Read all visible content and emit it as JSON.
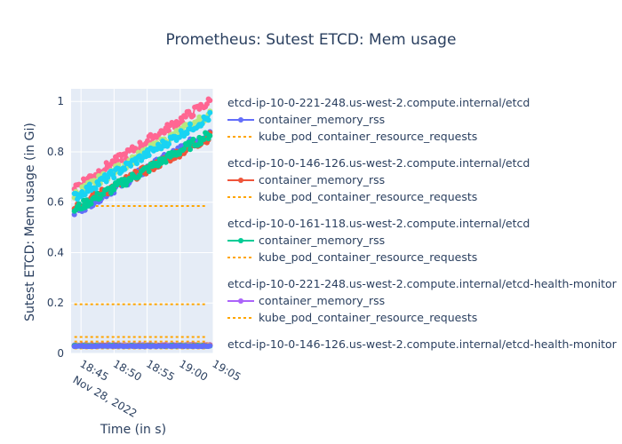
{
  "chart_data": {
    "type": "line",
    "title": "Prometheus: Sutest ETCD: Mem usage",
    "xlabel": "Time (in s)",
    "ylabel": "Sutest ETCD: Mem usage (in Gi)",
    "x_ticks": [
      "18:45",
      "18:50",
      "18:55",
      "19:00",
      "19:05"
    ],
    "x_tick_sublabel": "Nov 28, 2022",
    "x_range": [
      "18:43:30",
      "19:05:00"
    ],
    "y_ticks": [
      "0",
      "0.2",
      "0.4",
      "0.6",
      "0.8",
      "1"
    ],
    "ylim": [
      0,
      1.05
    ],
    "legend_position": "right",
    "groups": [
      {
        "name": "etcd-ip-10-0-221-248.us-west-2.compute.internal/etcd",
        "series": [
          {
            "name": "container_memory_rss",
            "color": "#636efa",
            "style": "lines+markers",
            "start": 0.56,
            "end": 0.88
          },
          {
            "name": "kube_pod_container_resource_requests",
            "color": "#ffa500",
            "style": "dotted"
          }
        ]
      },
      {
        "name": "etcd-ip-10-0-146-126.us-west-2.compute.internal/etcd",
        "series": [
          {
            "name": "container_memory_rss",
            "color": "#ef553b",
            "style": "lines+markers",
            "start": 0.58,
            "end": 0.86
          },
          {
            "name": "kube_pod_container_resource_requests",
            "color": "#ffa500",
            "style": "dotted"
          }
        ]
      },
      {
        "name": "etcd-ip-10-0-161-118.us-west-2.compute.internal/etcd",
        "series": [
          {
            "name": "container_memory_rss",
            "color": "#00cc96",
            "style": "lines+markers",
            "start": 0.57,
            "end": 0.87
          },
          {
            "name": "kube_pod_container_resource_requests",
            "color": "#ffa500",
            "style": "dotted"
          }
        ]
      },
      {
        "name": "etcd-ip-10-0-221-248.us-west-2.compute.internal/etcd-health-monitor",
        "series": [
          {
            "name": "container_memory_rss",
            "color": "#ab63fa",
            "style": "lines+markers",
            "start": 0.032,
            "end": 0.033
          },
          {
            "name": "kube_pod_container_resource_requests",
            "color": "#ffa500",
            "style": "dotted"
          }
        ]
      },
      {
        "name": "etcd-ip-10-0-146-126.us-west-2.compute.internal/etcd-health-monitor",
        "series": []
      }
    ],
    "extra_series": [
      {
        "name": "pink",
        "color": "#ff6692",
        "start": 0.66,
        "end": 1.0
      },
      {
        "name": "light-green",
        "color": "#b6e880",
        "start": 0.63,
        "end": 0.95
      },
      {
        "name": "cyan",
        "color": "#19d3f3",
        "start": 0.62,
        "end": 0.94
      }
    ],
    "request_levels": [
      0.585,
      0.195,
      0.065,
      0.047,
      0.033,
      0.02
    ],
    "low_series_colors": [
      "#ab63fa",
      "#ef553b",
      "#ffa15a",
      "#00cc96",
      "#636efa"
    ]
  }
}
